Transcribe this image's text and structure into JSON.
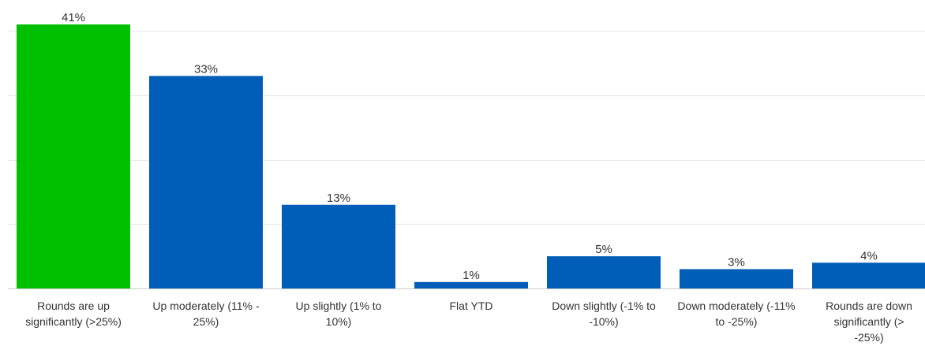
{
  "chart_data": {
    "type": "bar",
    "categories": [
      [
        "Rounds are up",
        "significantly (>25%)"
      ],
      [
        "Up moderately (11% -",
        "25%)"
      ],
      [
        "Up slightly (1% to",
        "10%)"
      ],
      [
        "Flat YTD"
      ],
      [
        "Down slightly (-1% to",
        "-10%)"
      ],
      [
        "Down moderately (-11%",
        "to -25%)"
      ],
      [
        "Rounds are down",
        "significantly (>",
        "-25%)"
      ]
    ],
    "values": [
      41,
      33,
      13,
      1,
      5,
      3,
      4
    ],
    "data_labels": [
      "41%",
      "33%",
      "13%",
      "1%",
      "5%",
      "3%",
      "4%"
    ],
    "colors": [
      "#00c000",
      "#005eb8",
      "#005eb8",
      "#005eb8",
      "#005eb8",
      "#005eb8",
      "#005eb8"
    ],
    "ylim": [
      0,
      42
    ],
    "gridlines": [
      10,
      20,
      30,
      40
    ],
    "grid": true,
    "legend": "none"
  }
}
